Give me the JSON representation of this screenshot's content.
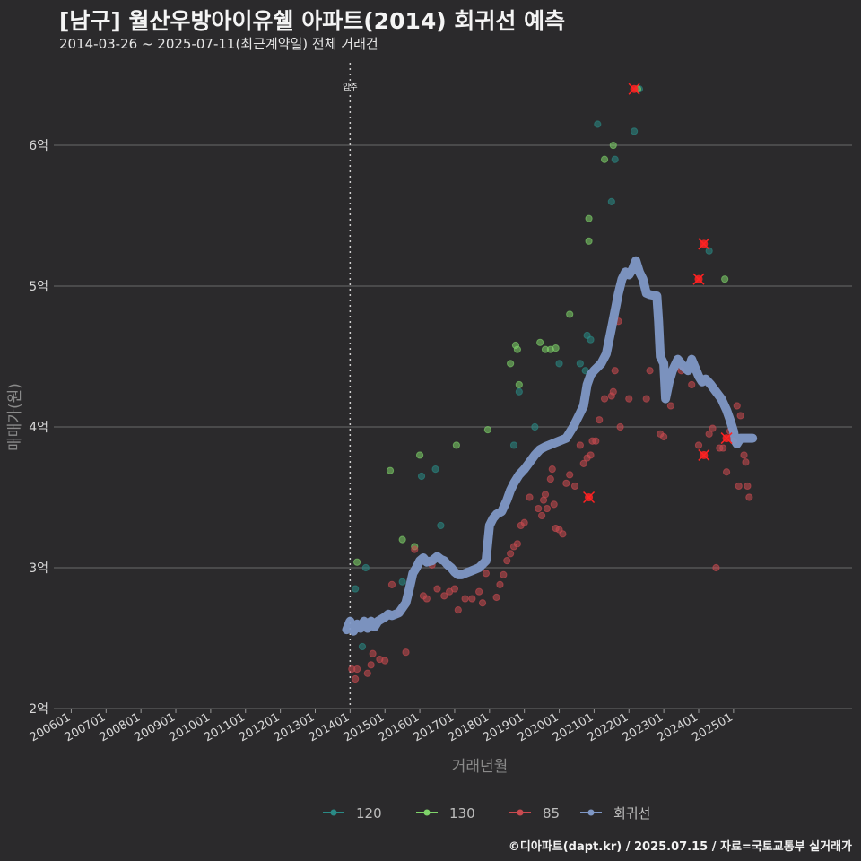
{
  "header": {
    "title": "[남구] 월산우방아이유쉘 아파트(2014) 회귀선 예측",
    "subtitle": "2014-03-26 ~ 2025-07-11(최근계약일) 전체 거래건"
  },
  "footer": {
    "credit": "©디아파트(dapt.kr) / 2025.07.15 / 자료=국토교통부 실거래가"
  },
  "colors": {
    "background": "#2b2a2c",
    "s120": "#2a8a86",
    "s130": "#7fd46a",
    "s85": "#c94a50",
    "regression": "#7f98c6",
    "highlight": "#ff2222",
    "grid": "#6a6a6a"
  },
  "chart_data": {
    "type": "scatter",
    "title": "[남구] 월산우방아이유쉘 아파트(2014) 회귀선 예측",
    "subtitle": "2014-03-26 ~ 2025-07-11(최근계약일) 전체 거래건",
    "xlabel": "거래년월",
    "ylabel": "매매가(원)",
    "xlim": [
      2005.5,
      2028.4
    ],
    "ylim": [
      2.0,
      6.65
    ],
    "xticks": [
      {
        "x": 2006.0,
        "label": "200601"
      },
      {
        "x": 2007.0,
        "label": "200701"
      },
      {
        "x": 2008.0,
        "label": "200801"
      },
      {
        "x": 2009.0,
        "label": "200901"
      },
      {
        "x": 2010.0,
        "label": "201001"
      },
      {
        "x": 2011.0,
        "label": "201101"
      },
      {
        "x": 2012.0,
        "label": "201201"
      },
      {
        "x": 2013.0,
        "label": "201301"
      },
      {
        "x": 2014.0,
        "label": "201401"
      },
      {
        "x": 2015.0,
        "label": "201501"
      },
      {
        "x": 2016.0,
        "label": "201601"
      },
      {
        "x": 2017.0,
        "label": "201701"
      },
      {
        "x": 2018.0,
        "label": "201801"
      },
      {
        "x": 2019.0,
        "label": "201901"
      },
      {
        "x": 2020.0,
        "label": "202001"
      },
      {
        "x": 2021.0,
        "label": "202101"
      },
      {
        "x": 2022.0,
        "label": "202201"
      },
      {
        "x": 2023.0,
        "label": "202301"
      },
      {
        "x": 2024.0,
        "label": "202401"
      },
      {
        "x": 2025.0,
        "label": "202501"
      }
    ],
    "yticks": [
      {
        "y": 2,
        "label": "2억"
      },
      {
        "y": 3,
        "label": "3억"
      },
      {
        "y": 4,
        "label": "4억"
      },
      {
        "y": 5,
        "label": "5억"
      },
      {
        "y": 6,
        "label": "6억"
      }
    ],
    "grid": true,
    "legend_position": "bottom",
    "annotation": {
      "x": 2014.0,
      "label": "입주"
    },
    "series": [
      {
        "name": "120",
        "color_key": "s120",
        "points": [
          [
            2014.15,
            2.85
          ],
          [
            2014.35,
            2.44
          ],
          [
            2014.45,
            3.0
          ],
          [
            2015.5,
            2.9
          ],
          [
            2016.05,
            3.65
          ],
          [
            2016.45,
            3.7
          ],
          [
            2016.6,
            3.3
          ],
          [
            2018.7,
            3.87
          ],
          [
            2018.85,
            4.25
          ],
          [
            2019.3,
            4.0
          ],
          [
            2020.0,
            4.45
          ],
          [
            2020.6,
            4.45
          ],
          [
            2020.75,
            4.4
          ],
          [
            2020.8,
            4.65
          ],
          [
            2020.9,
            4.62
          ],
          [
            2021.1,
            6.15
          ],
          [
            2021.5,
            5.6
          ],
          [
            2021.6,
            5.9
          ],
          [
            2022.15,
            6.1
          ],
          [
            2022.3,
            6.4
          ],
          [
            2024.3,
            5.25
          ]
        ]
      },
      {
        "name": "130",
        "color_key": "s130",
        "points": [
          [
            2014.2,
            3.04
          ],
          [
            2015.15,
            3.69
          ],
          [
            2015.5,
            3.2
          ],
          [
            2015.85,
            3.15
          ],
          [
            2016.0,
            3.8
          ],
          [
            2017.05,
            3.87
          ],
          [
            2017.95,
            3.98
          ],
          [
            2018.6,
            4.45
          ],
          [
            2018.75,
            4.58
          ],
          [
            2018.8,
            4.55
          ],
          [
            2018.85,
            4.3
          ],
          [
            2019.45,
            4.6
          ],
          [
            2019.6,
            4.55
          ],
          [
            2019.75,
            4.55
          ],
          [
            2019.9,
            4.56
          ],
          [
            2020.3,
            4.8
          ],
          [
            2020.85,
            5.32
          ],
          [
            2020.85,
            5.48
          ],
          [
            2021.3,
            5.9
          ],
          [
            2021.55,
            6.0
          ],
          [
            2022.25,
            6.4
          ],
          [
            2024.75,
            5.05
          ]
        ]
      },
      {
        "name": "85",
        "color_key": "s85",
        "points": [
          [
            2014.05,
            2.28
          ],
          [
            2014.15,
            2.21
          ],
          [
            2014.2,
            2.28
          ],
          [
            2014.5,
            2.25
          ],
          [
            2014.6,
            2.31
          ],
          [
            2014.65,
            2.39
          ],
          [
            2014.85,
            2.35
          ],
          [
            2015.0,
            2.34
          ],
          [
            2015.2,
            2.88
          ],
          [
            2015.4,
            2.68
          ],
          [
            2015.6,
            2.4
          ],
          [
            2015.85,
            3.13
          ],
          [
            2016.1,
            2.8
          ],
          [
            2016.2,
            2.78
          ],
          [
            2016.35,
            3.02
          ],
          [
            2016.5,
            2.85
          ],
          [
            2016.7,
            2.8
          ],
          [
            2016.85,
            2.83
          ],
          [
            2017.0,
            2.85
          ],
          [
            2017.1,
            2.7
          ],
          [
            2017.3,
            2.78
          ],
          [
            2017.5,
            2.78
          ],
          [
            2017.7,
            2.83
          ],
          [
            2017.8,
            2.75
          ],
          [
            2017.9,
            2.96
          ],
          [
            2018.2,
            2.79
          ],
          [
            2018.3,
            2.88
          ],
          [
            2018.4,
            2.95
          ],
          [
            2018.5,
            3.05
          ],
          [
            2018.6,
            3.1
          ],
          [
            2018.7,
            3.15
          ],
          [
            2018.8,
            3.17
          ],
          [
            2018.9,
            3.3
          ],
          [
            2019.0,
            3.32
          ],
          [
            2019.15,
            3.5
          ],
          [
            2019.4,
            3.42
          ],
          [
            2019.5,
            3.37
          ],
          [
            2019.55,
            3.48
          ],
          [
            2019.6,
            3.52
          ],
          [
            2019.65,
            3.42
          ],
          [
            2019.75,
            3.63
          ],
          [
            2019.8,
            3.7
          ],
          [
            2019.85,
            3.45
          ],
          [
            2019.9,
            3.28
          ],
          [
            2020.0,
            3.27
          ],
          [
            2020.1,
            3.24
          ],
          [
            2020.2,
            3.6
          ],
          [
            2020.3,
            3.66
          ],
          [
            2020.45,
            3.58
          ],
          [
            2020.6,
            3.87
          ],
          [
            2020.7,
            3.74
          ],
          [
            2020.8,
            3.78
          ],
          [
            2020.9,
            3.8
          ],
          [
            2020.95,
            3.9
          ],
          [
            2021.05,
            3.9
          ],
          [
            2021.15,
            4.05
          ],
          [
            2021.3,
            4.2
          ],
          [
            2021.5,
            4.22
          ],
          [
            2021.55,
            4.25
          ],
          [
            2021.6,
            4.4
          ],
          [
            2021.7,
            4.75
          ],
          [
            2021.75,
            4.0
          ],
          [
            2022.0,
            4.2
          ],
          [
            2022.5,
            4.2
          ],
          [
            2022.6,
            4.4
          ],
          [
            2022.9,
            3.95
          ],
          [
            2023.0,
            3.93
          ],
          [
            2023.2,
            4.15
          ],
          [
            2023.5,
            4.4
          ],
          [
            2023.8,
            4.3
          ],
          [
            2024.0,
            3.87
          ],
          [
            2024.3,
            3.95
          ],
          [
            2024.4,
            3.99
          ],
          [
            2024.5,
            3.0
          ],
          [
            2024.6,
            3.85
          ],
          [
            2024.7,
            3.85
          ],
          [
            2024.8,
            3.68
          ],
          [
            2024.9,
            3.97
          ],
          [
            2025.0,
            3.9
          ],
          [
            2025.1,
            4.15
          ],
          [
            2025.15,
            3.58
          ],
          [
            2025.2,
            4.08
          ],
          [
            2025.3,
            3.8
          ],
          [
            2025.35,
            3.75
          ],
          [
            2025.4,
            3.58
          ],
          [
            2025.45,
            3.5
          ]
        ]
      }
    ],
    "highlights": [
      [
        2020.85,
        3.5
      ],
      [
        2022.15,
        6.4
      ],
      [
        2024.0,
        5.05
      ],
      [
        2024.15,
        5.3
      ],
      [
        2024.15,
        3.8
      ],
      [
        2024.8,
        3.92
      ]
    ],
    "regression": {
      "name": "회귀선",
      "color_key": "regression",
      "points": [
        [
          2013.9,
          2.56
        ],
        [
          2014.0,
          2.62
        ],
        [
          2014.1,
          2.55
        ],
        [
          2014.2,
          2.6
        ],
        [
          2014.3,
          2.57
        ],
        [
          2014.4,
          2.62
        ],
        [
          2014.5,
          2.57
        ],
        [
          2014.6,
          2.62
        ],
        [
          2014.7,
          2.58
        ],
        [
          2014.8,
          2.62
        ],
        [
          2015.0,
          2.65
        ],
        [
          2015.1,
          2.67
        ],
        [
          2015.2,
          2.66
        ],
        [
          2015.4,
          2.68
        ],
        [
          2015.6,
          2.75
        ],
        [
          2015.7,
          2.85
        ],
        [
          2015.8,
          2.96
        ],
        [
          2015.9,
          3.0
        ],
        [
          2016.0,
          3.05
        ],
        [
          2016.1,
          3.07
        ],
        [
          2016.2,
          3.04
        ],
        [
          2016.35,
          3.05
        ],
        [
          2016.5,
          3.08
        ],
        [
          2016.6,
          3.06
        ],
        [
          2016.7,
          3.05
        ],
        [
          2016.8,
          3.02
        ],
        [
          2016.9,
          3.0
        ],
        [
          2017.0,
          2.97
        ],
        [
          2017.1,
          2.95
        ],
        [
          2017.2,
          2.95
        ],
        [
          2017.3,
          2.96
        ],
        [
          2017.5,
          2.98
        ],
        [
          2017.7,
          3.0
        ],
        [
          2017.9,
          3.05
        ],
        [
          2017.95,
          3.18
        ],
        [
          2018.0,
          3.3
        ],
        [
          2018.1,
          3.35
        ],
        [
          2018.2,
          3.38
        ],
        [
          2018.35,
          3.4
        ],
        [
          2018.5,
          3.48
        ],
        [
          2018.6,
          3.55
        ],
        [
          2018.7,
          3.6
        ],
        [
          2018.85,
          3.66
        ],
        [
          2019.0,
          3.7
        ],
        [
          2019.15,
          3.75
        ],
        [
          2019.3,
          3.8
        ],
        [
          2019.45,
          3.84
        ],
        [
          2019.6,
          3.86
        ],
        [
          2019.8,
          3.88
        ],
        [
          2020.0,
          3.9
        ],
        [
          2020.2,
          3.92
        ],
        [
          2020.3,
          3.96
        ],
        [
          2020.4,
          4.0
        ],
        [
          2020.5,
          4.05
        ],
        [
          2020.6,
          4.1
        ],
        [
          2020.7,
          4.15
        ],
        [
          2020.8,
          4.3
        ],
        [
          2020.9,
          4.37
        ],
        [
          2021.0,
          4.4
        ],
        [
          2021.2,
          4.45
        ],
        [
          2021.35,
          4.52
        ],
        [
          2021.5,
          4.7
        ],
        [
          2021.7,
          4.95
        ],
        [
          2021.8,
          5.05
        ],
        [
          2021.9,
          5.1
        ],
        [
          2022.0,
          5.08
        ],
        [
          2022.1,
          5.12
        ],
        [
          2022.2,
          5.18
        ],
        [
          2022.3,
          5.1
        ],
        [
          2022.4,
          5.05
        ],
        [
          2022.5,
          4.95
        ],
        [
          2022.6,
          4.94
        ],
        [
          2022.8,
          4.93
        ],
        [
          2022.85,
          4.75
        ],
        [
          2022.9,
          4.5
        ],
        [
          2023.0,
          4.45
        ],
        [
          2023.05,
          4.2
        ],
        [
          2023.15,
          4.32
        ],
        [
          2023.25,
          4.4
        ],
        [
          2023.4,
          4.48
        ],
        [
          2023.5,
          4.45
        ],
        [
          2023.6,
          4.42
        ],
        [
          2023.7,
          4.4
        ],
        [
          2023.8,
          4.48
        ],
        [
          2023.9,
          4.42
        ],
        [
          2024.0,
          4.36
        ],
        [
          2024.1,
          4.32
        ],
        [
          2024.2,
          4.34
        ],
        [
          2024.35,
          4.3
        ],
        [
          2024.5,
          4.25
        ],
        [
          2024.65,
          4.2
        ],
        [
          2024.8,
          4.12
        ],
        [
          2024.9,
          4.05
        ],
        [
          2025.0,
          3.97
        ],
        [
          2025.05,
          3.9
        ],
        [
          2025.1,
          3.88
        ],
        [
          2025.2,
          3.92
        ],
        [
          2025.4,
          3.92
        ],
        [
          2025.55,
          3.92
        ]
      ]
    }
  }
}
